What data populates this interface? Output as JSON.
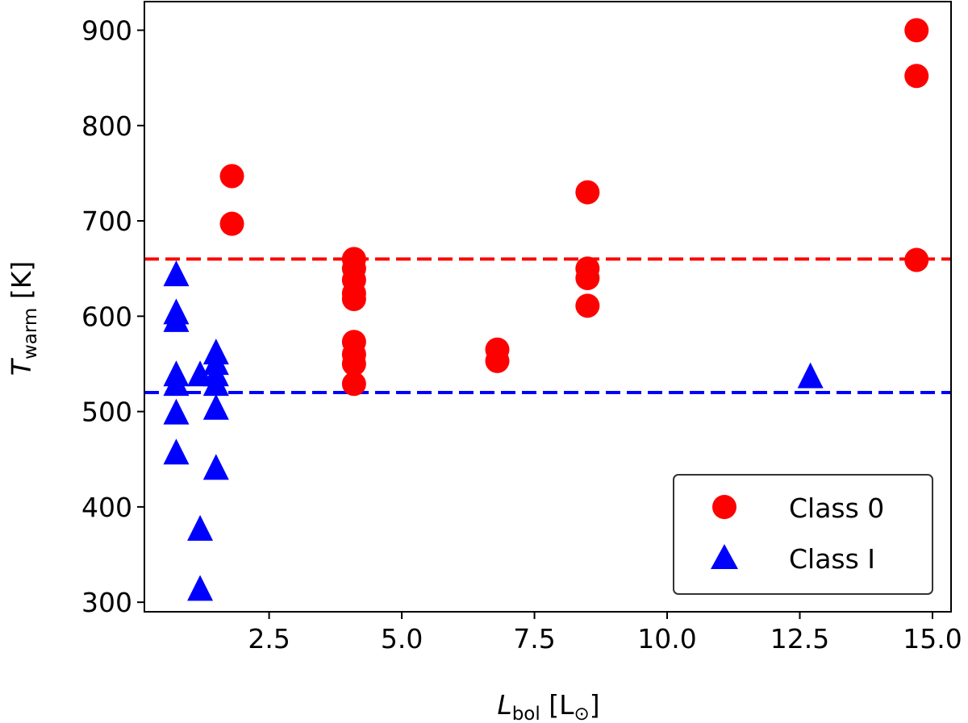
{
  "chart_data": {
    "type": "scatter",
    "xlabel": {
      "main": "L",
      "sub": "bol",
      "unit": " [L",
      "unit_sub": "⊙",
      "unit_close": "]"
    },
    "ylabel": {
      "main": "T",
      "sub": "warm",
      "unit": " [K]"
    },
    "xlim": [
      0.15,
      15.35
    ],
    "ylim": [
      290,
      930
    ],
    "xticks": [
      2.5,
      5.0,
      7.5,
      10.0,
      12.5,
      15.0
    ],
    "xtick_labels": [
      "2.5",
      "5.0",
      "7.5",
      "10.0",
      "12.5",
      "15.0"
    ],
    "yticks": [
      300,
      400,
      500,
      600,
      700,
      800,
      900
    ],
    "ytick_labels": [
      "300",
      "400",
      "500",
      "600",
      "700",
      "800",
      "900"
    ],
    "grid": false,
    "legend_position": "bottom-right",
    "reference_lines": [
      {
        "y": 660,
        "color": "#ff0000",
        "style": "dashed"
      },
      {
        "y": 520,
        "color": "#0000ff",
        "style": "dashed"
      }
    ],
    "series": [
      {
        "name": "Class 0",
        "marker": "circle",
        "color": "#ff0000",
        "points": [
          [
            1.8,
            747
          ],
          [
            1.8,
            697
          ],
          [
            4.1,
            660
          ],
          [
            4.1,
            650
          ],
          [
            4.1,
            638
          ],
          [
            4.1,
            624
          ],
          [
            4.1,
            618
          ],
          [
            4.1,
            573
          ],
          [
            4.1,
            560
          ],
          [
            4.1,
            550
          ],
          [
            4.1,
            529
          ],
          [
            6.8,
            565
          ],
          [
            6.8,
            553
          ],
          [
            8.5,
            730
          ],
          [
            8.5,
            650
          ],
          [
            8.5,
            640
          ],
          [
            8.5,
            611
          ],
          [
            14.7,
            900
          ],
          [
            14.7,
            852
          ],
          [
            14.7,
            659
          ]
        ]
      },
      {
        "name": "Class I",
        "marker": "triangle",
        "color": "#0000ff",
        "points": [
          [
            0.75,
            645
          ],
          [
            0.75,
            605
          ],
          [
            0.75,
            597
          ],
          [
            0.75,
            540
          ],
          [
            0.75,
            530
          ],
          [
            0.75,
            500
          ],
          [
            0.75,
            458
          ],
          [
            1.2,
            540
          ],
          [
            1.2,
            378
          ],
          [
            1.2,
            315
          ],
          [
            1.5,
            563
          ],
          [
            1.5,
            552
          ],
          [
            1.5,
            540
          ],
          [
            1.5,
            530
          ],
          [
            1.5,
            505
          ],
          [
            1.5,
            442
          ],
          [
            12.7,
            538
          ]
        ]
      }
    ]
  }
}
